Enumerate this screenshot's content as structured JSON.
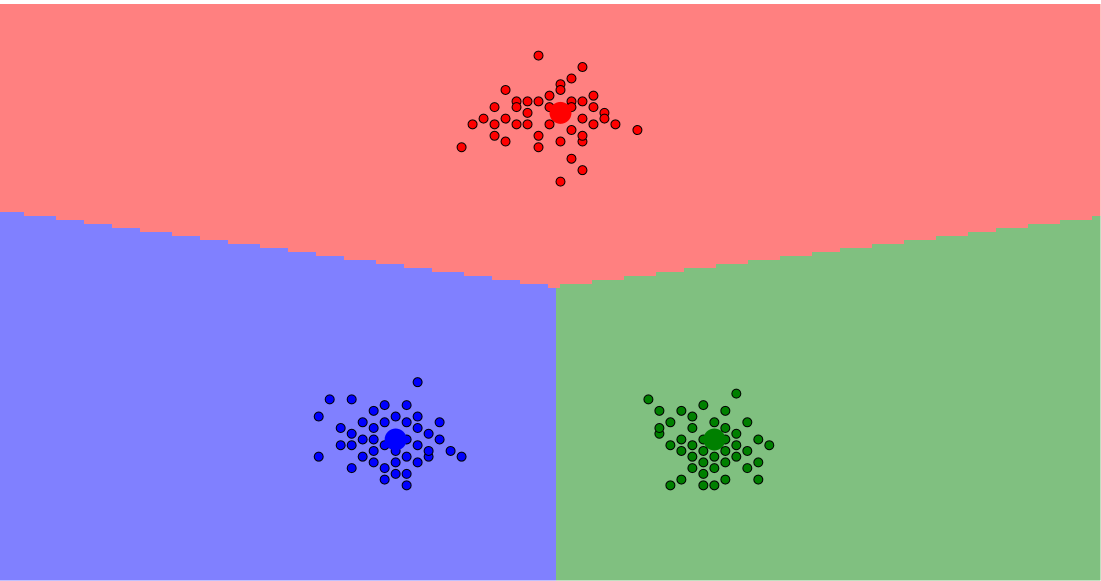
{
  "chart_data": {
    "type": "scatter",
    "title": "",
    "xlabel": "",
    "ylabel": "",
    "grid": false,
    "legend": "none",
    "xlim": [
      -5,
      5
    ],
    "ylim": [
      -5,
      5
    ],
    "background_regions": [
      {
        "cluster": "red",
        "color": "#ff8080"
      },
      {
        "cluster": "blue",
        "color": "#8080ff"
      },
      {
        "cluster": "green",
        "color": "#80c080"
      }
    ],
    "series": [
      {
        "cluster": "red",
        "color": "#ff0000",
        "centroid": [
          0.1,
          3.1
        ],
        "points": [
          [
            -0.1,
            4.1
          ],
          [
            0.3,
            3.9
          ],
          [
            0.1,
            3.6
          ],
          [
            -0.4,
            3.5
          ],
          [
            0.0,
            3.4
          ],
          [
            -0.2,
            3.3
          ],
          [
            0.2,
            3.3
          ],
          [
            0.4,
            3.4
          ],
          [
            -0.5,
            3.2
          ],
          [
            -0.2,
            3.1
          ],
          [
            0.1,
            3.0
          ],
          [
            0.3,
            3.0
          ],
          [
            0.5,
            3.1
          ],
          [
            -0.6,
            3.0
          ],
          [
            -0.3,
            2.9
          ],
          [
            0.0,
            2.9
          ],
          [
            0.2,
            2.8
          ],
          [
            0.4,
            2.9
          ],
          [
            -0.5,
            2.7
          ],
          [
            -0.1,
            2.7
          ],
          [
            0.1,
            2.6
          ],
          [
            0.3,
            2.6
          ],
          [
            -0.4,
            2.6
          ],
          [
            0.6,
            2.9
          ],
          [
            -0.7,
            2.9
          ],
          [
            -0.4,
            3.0
          ],
          [
            0.2,
            3.2
          ],
          [
            -0.3,
            3.3
          ],
          [
            0.4,
            3.2
          ],
          [
            0.8,
            2.8
          ],
          [
            -0.8,
            2.5
          ],
          [
            0.2,
            2.3
          ],
          [
            0.3,
            2.1
          ],
          [
            0.1,
            1.9
          ],
          [
            -0.1,
            2.5
          ],
          [
            0.5,
            3.0
          ],
          [
            -0.2,
            2.9
          ],
          [
            0.0,
            3.2
          ],
          [
            0.3,
            2.7
          ],
          [
            -0.5,
            2.9
          ],
          [
            0.1,
            3.5
          ],
          [
            0.2,
            3.7
          ],
          [
            0.3,
            3.3
          ],
          [
            -0.1,
            3.3
          ],
          [
            -0.3,
            3.2
          ]
        ]
      },
      {
        "cluster": "blue",
        "color": "#0000ff",
        "centroid": [
          -1.4,
          -2.6
        ],
        "points": [
          [
            -1.2,
            -1.6
          ],
          [
            -2.0,
            -1.9
          ],
          [
            -1.8,
            -1.9
          ],
          [
            -1.5,
            -2.0
          ],
          [
            -1.3,
            -2.0
          ],
          [
            -1.6,
            -2.1
          ],
          [
            -1.4,
            -2.2
          ],
          [
            -1.2,
            -2.2
          ],
          [
            -2.1,
            -2.2
          ],
          [
            -1.7,
            -2.3
          ],
          [
            -1.5,
            -2.3
          ],
          [
            -1.3,
            -2.3
          ],
          [
            -1.9,
            -2.4
          ],
          [
            -1.6,
            -2.4
          ],
          [
            -1.2,
            -2.4
          ],
          [
            -1.8,
            -2.5
          ],
          [
            -1.4,
            -2.5
          ],
          [
            -1.1,
            -2.5
          ],
          [
            -1.6,
            -2.6
          ],
          [
            -1.3,
            -2.6
          ],
          [
            -1.0,
            -2.6
          ],
          [
            -1.8,
            -2.7
          ],
          [
            -1.5,
            -2.7
          ],
          [
            -1.2,
            -2.7
          ],
          [
            -0.9,
            -2.8
          ],
          [
            -1.4,
            -2.8
          ],
          [
            -2.1,
            -2.9
          ],
          [
            -1.7,
            -2.9
          ],
          [
            -1.3,
            -2.9
          ],
          [
            -1.1,
            -2.9
          ],
          [
            -1.6,
            -3.0
          ],
          [
            -1.4,
            -3.0
          ],
          [
            -1.2,
            -3.0
          ],
          [
            -1.5,
            -3.1
          ],
          [
            -1.8,
            -3.1
          ],
          [
            -1.4,
            -3.2
          ],
          [
            -1.3,
            -3.2
          ],
          [
            -1.5,
            -3.3
          ],
          [
            -1.3,
            -3.4
          ],
          [
            -0.8,
            -2.9
          ],
          [
            -1.1,
            -2.8
          ],
          [
            -1.7,
            -2.6
          ],
          [
            -1.9,
            -2.7
          ],
          [
            -1.0,
            -2.3
          ],
          [
            -1.6,
            -2.8
          ]
        ]
      },
      {
        "cluster": "green",
        "color": "#008000",
        "centroid": [
          1.5,
          -2.6
        ],
        "points": [
          [
            1.7,
            -1.8
          ],
          [
            0.9,
            -1.9
          ],
          [
            1.4,
            -2.0
          ],
          [
            1.2,
            -2.1
          ],
          [
            1.0,
            -2.1
          ],
          [
            1.6,
            -2.1
          ],
          [
            1.3,
            -2.2
          ],
          [
            1.1,
            -2.3
          ],
          [
            1.5,
            -2.3
          ],
          [
            1.8,
            -2.3
          ],
          [
            1.3,
            -2.4
          ],
          [
            1.0,
            -2.5
          ],
          [
            1.5,
            -2.5
          ],
          [
            1.7,
            -2.5
          ],
          [
            1.2,
            -2.6
          ],
          [
            1.4,
            -2.6
          ],
          [
            1.6,
            -2.6
          ],
          [
            1.9,
            -2.6
          ],
          [
            1.1,
            -2.7
          ],
          [
            1.3,
            -2.7
          ],
          [
            1.5,
            -2.7
          ],
          [
            1.7,
            -2.7
          ],
          [
            2.0,
            -2.7
          ],
          [
            1.2,
            -2.8
          ],
          [
            1.4,
            -2.8
          ],
          [
            1.6,
            -2.8
          ],
          [
            1.8,
            -2.8
          ],
          [
            1.3,
            -2.9
          ],
          [
            1.5,
            -2.9
          ],
          [
            1.7,
            -2.9
          ],
          [
            1.4,
            -3.0
          ],
          [
            1.6,
            -3.0
          ],
          [
            1.3,
            -3.1
          ],
          [
            1.5,
            -3.1
          ],
          [
            1.8,
            -3.1
          ],
          [
            1.4,
            -3.2
          ],
          [
            1.2,
            -3.3
          ],
          [
            1.6,
            -3.3
          ],
          [
            1.4,
            -3.4
          ],
          [
            1.9,
            -3.3
          ],
          [
            1.1,
            -3.4
          ],
          [
            1.5,
            -3.4
          ],
          [
            1.9,
            -3.0
          ],
          [
            1.0,
            -2.4
          ],
          [
            1.6,
            -2.4
          ]
        ]
      }
    ]
  }
}
